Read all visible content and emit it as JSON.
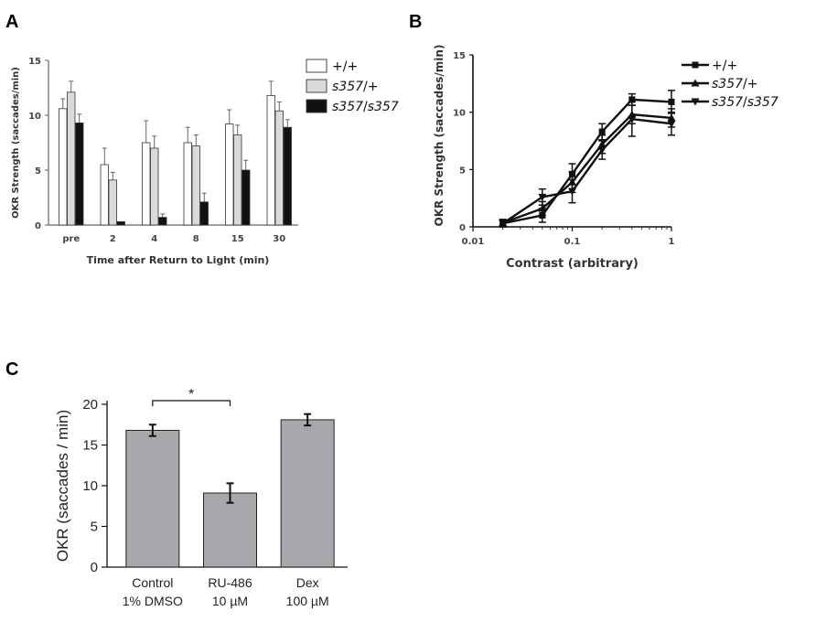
{
  "chart_data": [
    {
      "panel": "A",
      "type": "bar",
      "categories": [
        "pre",
        "2",
        "4",
        "8",
        "15",
        "30"
      ],
      "series": [
        {
          "name": "+/+",
          "fill": "#ffffff",
          "values": [
            10.6,
            5.5,
            7.5,
            7.5,
            9.2,
            11.8
          ],
          "errors": [
            0.9,
            1.5,
            2.0,
            1.4,
            1.3,
            1.3
          ]
        },
        {
          "name": "s357/+",
          "fill": "#d8dadd",
          "values": [
            12.1,
            4.1,
            7.0,
            7.2,
            8.2,
            10.4
          ],
          "errors": [
            1.0,
            0.7,
            1.1,
            1.0,
            0.9,
            0.8
          ]
        },
        {
          "name": "s357/s357",
          "fill": "#111111",
          "values": [
            9.3,
            0.3,
            0.7,
            2.1,
            5.0,
            8.9
          ],
          "errors": [
            0.8,
            0.0,
            0.3,
            0.8,
            0.9,
            0.7
          ]
        }
      ],
      "xlabel": "Time after Return to Light (min)",
      "ylabel": "OKR  Strength (saccades/min)",
      "ylim": [
        0,
        15
      ],
      "yticks": [
        "0",
        "5",
        "10",
        "15"
      ],
      "legend": "top-right"
    },
    {
      "panel": "B",
      "type": "line",
      "x": [
        0.02,
        0.05,
        0.1,
        0.2,
        0.4,
        1
      ],
      "series": [
        {
          "name": "+/+",
          "marker": "square",
          "values": [
            0.3,
            1.0,
            4.6,
            8.3,
            11.1,
            10.9
          ],
          "errors": [
            0.3,
            0.6,
            0.9,
            0.7,
            0.5,
            1.0
          ]
        },
        {
          "name": "s357/+",
          "marker": "triangle-up",
          "values": [
            0.35,
            1.6,
            3.9,
            7.2,
            9.8,
            9.5
          ],
          "errors": [
            0.3,
            0.6,
            0.9,
            0.8,
            0.8,
            0.8
          ]
        },
        {
          "name": "s357/s357",
          "marker": "triangle-down",
          "values": [
            0.3,
            2.6,
            3.1,
            6.7,
            9.4,
            9.0
          ],
          "errors": [
            0.3,
            0.7,
            1.0,
            0.8,
            1.5,
            1.0
          ]
        }
      ],
      "xlabel": "Contrast (arbitrary)",
      "ylabel": "OKR Strength (saccades/min)",
      "xscale": "log",
      "xlim": [
        0.01,
        1
      ],
      "xticks": [
        "0.01",
        "0.1",
        "1"
      ],
      "ylim": [
        0,
        15
      ],
      "yticks": [
        "0",
        "5",
        "10",
        "15"
      ],
      "legend": "top-right"
    },
    {
      "panel": "C",
      "type": "bar",
      "categories": [
        "Control",
        "RU-486",
        "Dex"
      ],
      "sublabels": [
        "1% DMSO",
        "10 µM",
        "100 µM"
      ],
      "values": [
        16.8,
        9.1,
        18.1
      ],
      "errors": [
        0.7,
        1.2,
        0.7
      ],
      "fill": "#a6a8ab",
      "ylabel": "OKR (saccades / min)",
      "ylim": [
        0,
        20
      ],
      "yticks": [
        "0",
        "5",
        "10",
        "15",
        "20"
      ],
      "significance": {
        "between": [
          0,
          1
        ],
        "label": "*"
      }
    }
  ]
}
